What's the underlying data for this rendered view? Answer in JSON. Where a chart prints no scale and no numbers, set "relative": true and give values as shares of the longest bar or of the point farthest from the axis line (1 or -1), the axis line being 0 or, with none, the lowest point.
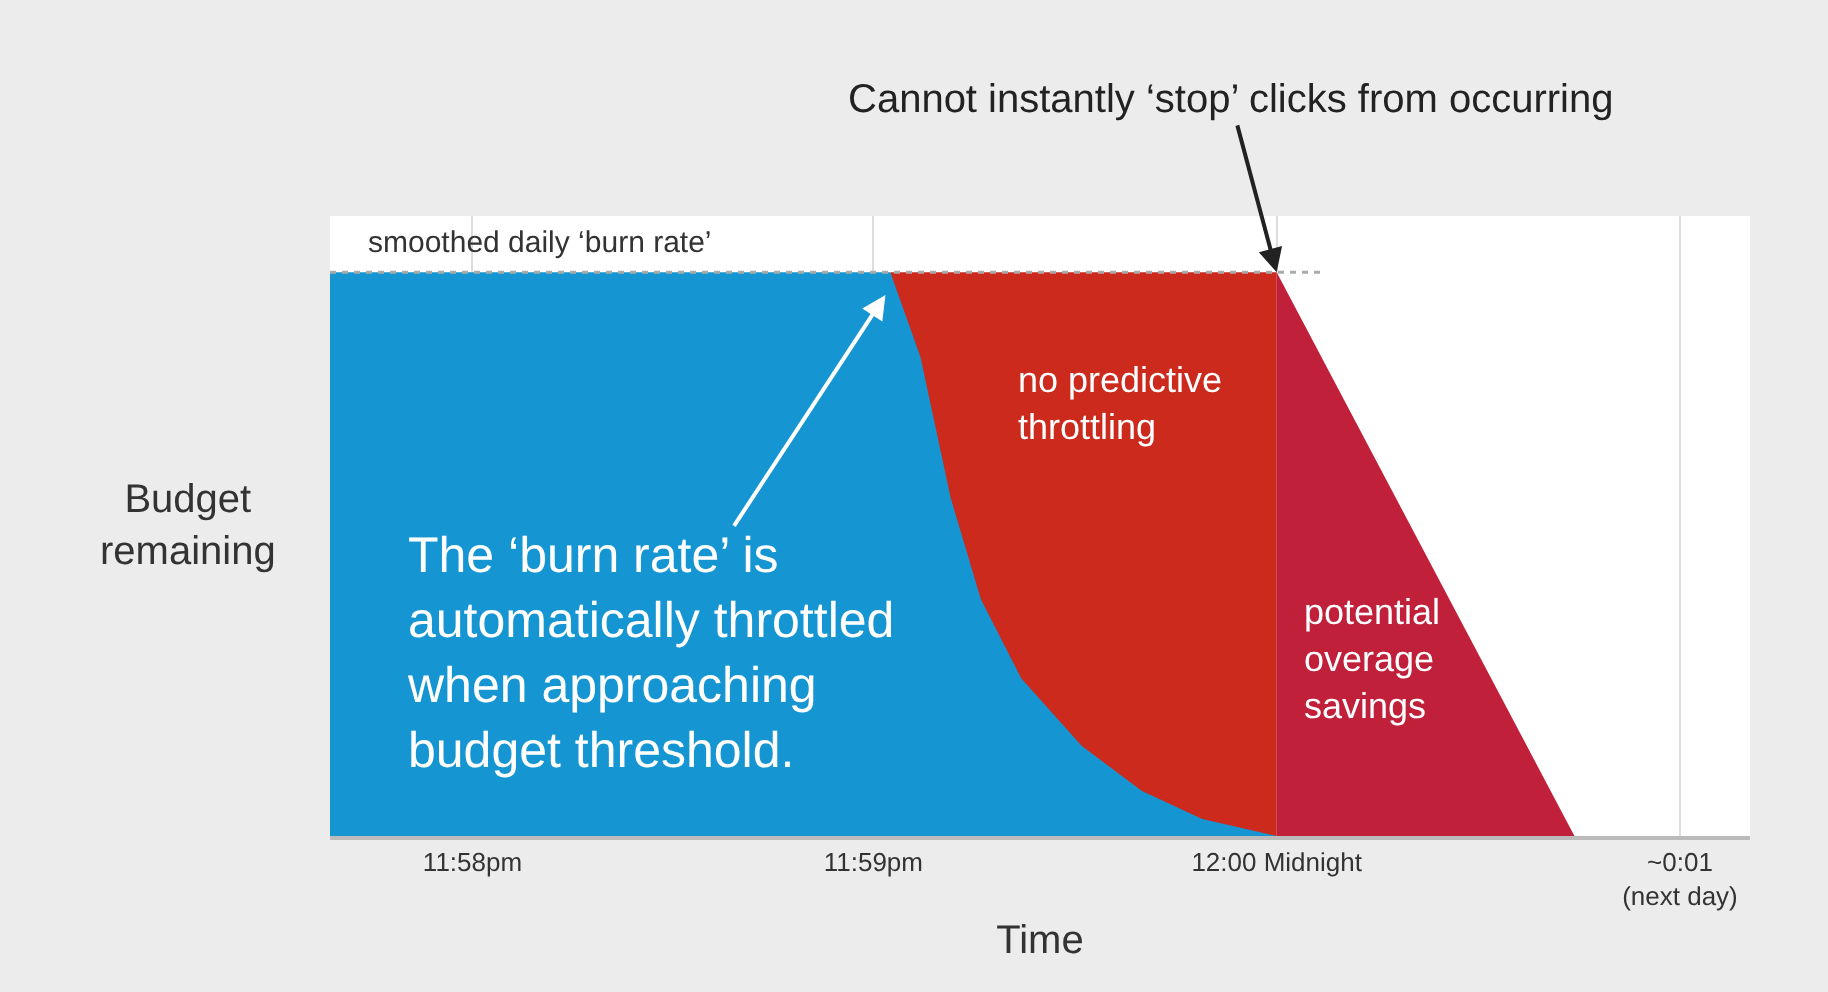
{
  "chart_data": {
    "type": "area",
    "relative": true,
    "xlabel": "Time",
    "ylabel": "Budget\nremaining",
    "xlim": [
      23.9608,
      24.0196
    ],
    "xticks": [
      {
        "value": 23.9667,
        "label": "11:58pm"
      },
      {
        "value": 23.9833,
        "label": "11:59pm"
      },
      {
        "value": 24,
        "label": "12:00 Midnight"
      },
      {
        "value": 24.0167,
        "label": "~0:01\n(next day)"
      }
    ],
    "grid": "x",
    "series": [
      {
        "color": "#cc2a1c",
        "x": [
          23.984,
          24,
          24
        ],
        "values": [
          1,
          1,
          0
        ]
      },
      {
        "color": "#1596d2",
        "x": [
          23.9608,
          23.984,
          23.98525,
          23.9865,
          23.98775,
          23.98942,
          23.99192,
          23.99442,
          23.99692,
          24
        ],
        "values": [
          1,
          1,
          0.85,
          0.6,
          0.42,
          0.28,
          0.16,
          0.08,
          0.03,
          0
        ]
      },
      {
        "color": "#c0203a",
        "x": [
          24,
          24.01233
        ],
        "values": [
          1,
          0
        ]
      }
    ],
    "ref_lines": [
      {
        "axis": "y",
        "value": 1,
        "label": "smoothed daily ‘burn rate’",
        "line_style": "dotted",
        "color": "#aaaaaa"
      }
    ],
    "annotations": [
      {
        "text": "Cannot instantly ‘stop’ clicks from occurring",
        "x": 24,
        "y": 1
      },
      {
        "text": "The ‘burn rate’ is\nautomatically throttled\nwhen approaching\nbudget threshold.",
        "x": 23.9838,
        "y": 0.96
      },
      "no predictive\nthrottling",
      "potential\noverage\nsavings"
    ]
  }
}
